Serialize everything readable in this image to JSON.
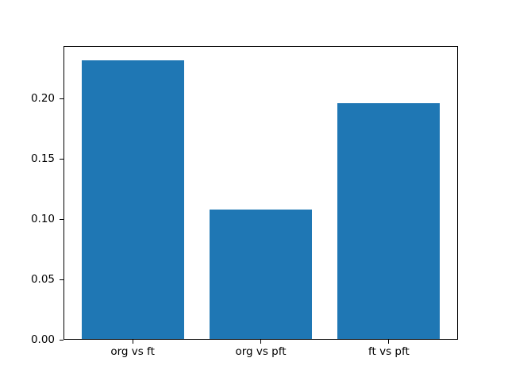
{
  "figure": {
    "background": "#ffffff"
  },
  "chart_data": {
    "type": "bar",
    "categories": [
      "org vs ft",
      "org vs pft",
      "ft vs pft"
    ],
    "values": [
      0.232,
      0.108,
      0.196
    ],
    "title": "",
    "xlabel": "",
    "ylabel": "",
    "xlim": [
      -0.54,
      2.54
    ],
    "ylim": [
      0,
      0.2436
    ],
    "bar_width": 0.8,
    "yticks": [
      0,
      0.05,
      0.1,
      0.15,
      0.2
    ],
    "ytick_labels": [
      "0.00",
      "0.05",
      "0.10",
      "0.15",
      "0.20"
    ],
    "bar_color": "#1f77b4",
    "axis_color": "#000000",
    "grid": false,
    "legend": null
  }
}
